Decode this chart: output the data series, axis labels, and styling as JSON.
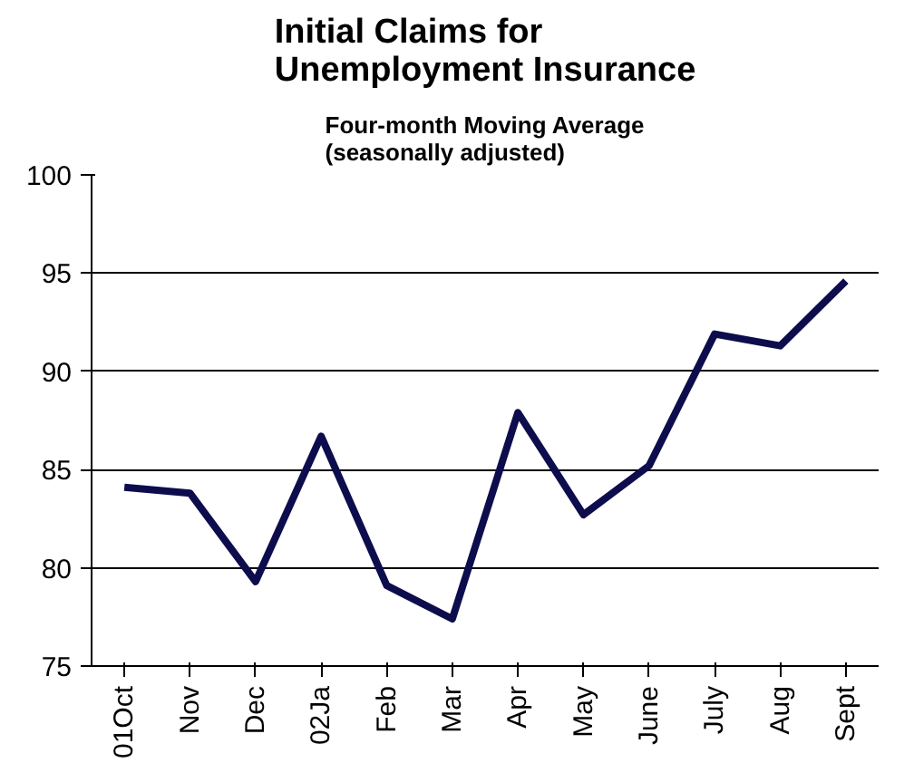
{
  "chart_data": {
    "type": "line",
    "title": "Initial Claims for Unemployment Insurance",
    "subtitle": "Four-month Moving Average (seasonally adjusted)",
    "categories": [
      "01Oct",
      "Nov",
      "Dec",
      "02Ja",
      "Feb",
      "Mar",
      "Apr",
      "May",
      "June",
      "July",
      "Aug",
      "Sept"
    ],
    "series": [
      {
        "color": "#0d0d4d",
        "values": [
          84.1,
          83.8,
          79.3,
          86.7,
          79.1,
          77.4,
          87.9,
          82.7,
          85.2,
          91.9,
          91.3,
          94.6
        ]
      }
    ],
    "ylim": [
      75,
      100
    ],
    "yticks": [
      75,
      80,
      85,
      90,
      95,
      100
    ],
    "grid": "y",
    "marker": "none",
    "line_style": "solid"
  }
}
